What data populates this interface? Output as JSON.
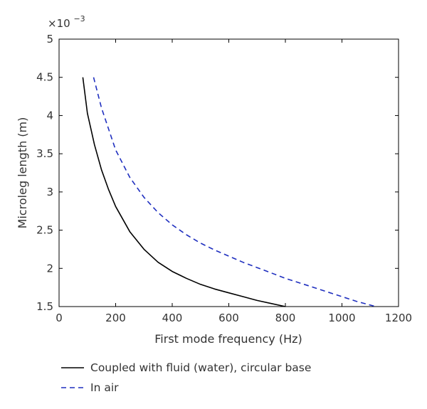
{
  "chart_data": {
    "type": "line",
    "xlabel": "First mode frequency (Hz)",
    "ylabel": "Microleg length (m)",
    "y_multiplier": "×10",
    "y_multiplier_exp": "−3",
    "xlim": [
      0,
      1200
    ],
    "ylim": [
      1.5,
      5
    ],
    "x_ticks": [
      "0",
      "200",
      "400",
      "600",
      "800",
      "1000",
      "1200"
    ],
    "y_ticks": [
      "1.5",
      "2",
      "2.5",
      "3",
      "3.5",
      "4",
      "4.5",
      "5"
    ],
    "grid": false,
    "legend_position": "bottom",
    "series": [
      {
        "name": "Coupled with fluid (water), circular base",
        "color": "#000000",
        "dash": "solid",
        "x": [
          84,
          100,
          125,
          150,
          175,
          200,
          250,
          300,
          350,
          400,
          450,
          500,
          550,
          600,
          650,
          700,
          750,
          800
        ],
        "y": [
          4.5,
          4.03,
          3.62,
          3.29,
          3.03,
          2.81,
          2.48,
          2.25,
          2.08,
          1.96,
          1.87,
          1.79,
          1.73,
          1.68,
          1.63,
          1.58,
          1.54,
          1.5
        ]
      },
      {
        "name": "In air",
        "color": "#1f2fbf",
        "dash": "dashed",
        "x": [
          122,
          150,
          200,
          250,
          300,
          350,
          400,
          450,
          500,
          550,
          600,
          650,
          700,
          750,
          800,
          850,
          900,
          950,
          1000,
          1050,
          1100,
          1120
        ],
        "y": [
          4.5,
          4.1,
          3.55,
          3.19,
          2.93,
          2.73,
          2.57,
          2.44,
          2.33,
          2.24,
          2.16,
          2.08,
          2.01,
          1.94,
          1.87,
          1.81,
          1.75,
          1.69,
          1.63,
          1.57,
          1.52,
          1.5
        ]
      }
    ]
  }
}
